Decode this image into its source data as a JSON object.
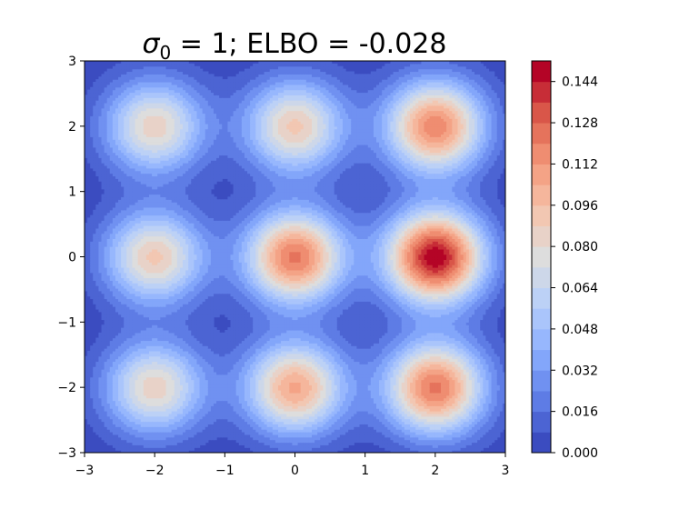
{
  "chart_data": {
    "type": "heatmap",
    "subtype": "filled-contour",
    "title": {
      "sigma_symbol": "σ",
      "sigma_subscript": "0",
      "rest": " = 1; ELBO = -0.028"
    },
    "xlabel": "",
    "ylabel": "",
    "xlim": [
      -3,
      3
    ],
    "ylim": [
      -3,
      3
    ],
    "x_ticks": [
      -3,
      -2,
      -1,
      0,
      1,
      2,
      3
    ],
    "y_ticks": [
      -3,
      -2,
      -1,
      0,
      1,
      2,
      3
    ],
    "x_tick_labels": [
      "−3",
      "−2",
      "−1",
      "0",
      "1",
      "2",
      "3"
    ],
    "y_tick_labels": [
      "−3",
      "−2",
      "−1",
      "0",
      "1",
      "2",
      "3"
    ],
    "colormap": "coolwarm",
    "levels": [
      0.0,
      0.008,
      0.016,
      0.024,
      0.032,
      0.04,
      0.048,
      0.056,
      0.064,
      0.072,
      0.08,
      0.088,
      0.096,
      0.104,
      0.112,
      0.12,
      0.128,
      0.136,
      0.144,
      0.152
    ],
    "colorbar": {
      "ticks": [
        0.0,
        0.016,
        0.032,
        0.048,
        0.064,
        0.08,
        0.096,
        0.112,
        0.128,
        0.144
      ],
      "tick_labels": [
        "0.000",
        "0.016",
        "0.032",
        "0.048",
        "0.064",
        "0.080",
        "0.096",
        "0.112",
        "0.128",
        "0.144"
      ],
      "range": [
        0.0,
        0.152
      ]
    },
    "mixture_components": [
      {
        "mean": [
          -2,
          2
        ],
        "peak_density": 0.085
      },
      {
        "mean": [
          0,
          2
        ],
        "peak_density": 0.09
      },
      {
        "mean": [
          2,
          2
        ],
        "peak_density": 0.118
      },
      {
        "mean": [
          -2,
          0
        ],
        "peak_density": 0.09
      },
      {
        "mean": [
          0,
          0
        ],
        "peak_density": 0.122
      },
      {
        "mean": [
          2,
          0
        ],
        "peak_density": 0.15
      },
      {
        "mean": [
          -2,
          -2
        ],
        "peak_density": 0.085
      },
      {
        "mean": [
          0,
          -2
        ],
        "peak_density": 0.106
      },
      {
        "mean": [
          2,
          -2
        ],
        "peak_density": 0.122
      }
    ],
    "component_std": 0.5,
    "grid": false
  }
}
